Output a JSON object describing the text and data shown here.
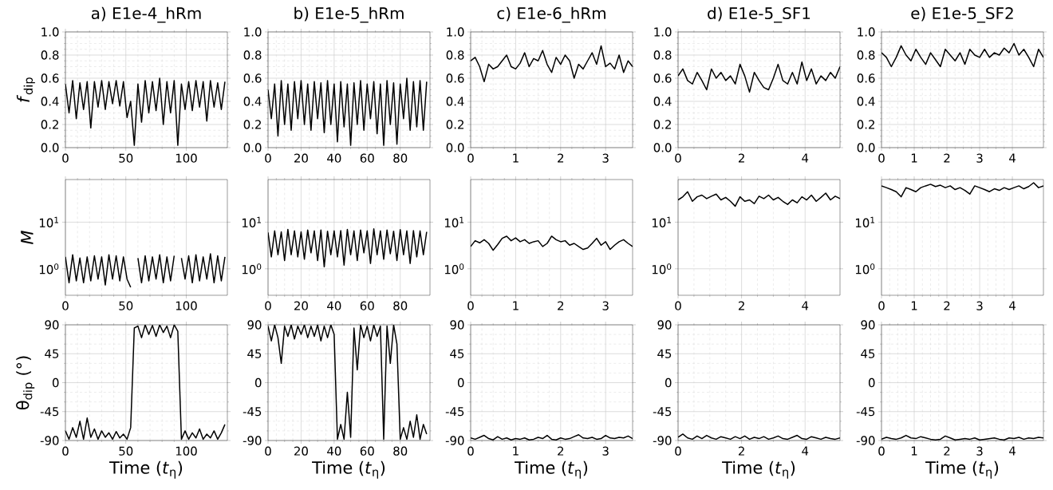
{
  "chart_data": [
    {
      "type": "line",
      "title": "a) E1e-4_hRm",
      "ylabel": "*f*$_{dip}$",
      "color": "#000000",
      "grid": true,
      "xlim": [
        0,
        134
      ],
      "xticks": [
        0,
        50,
        100
      ],
      "ylim": [
        0,
        1
      ],
      "yticks": [
        {
          "value": 0,
          "label": "0.0"
        },
        0.2,
        0.4,
        0.6,
        0.8,
        {
          "value": 1,
          "label": "1.0"
        }
      ],
      "x": [
        0,
        3,
        6,
        9,
        12,
        15,
        18,
        21,
        24,
        27,
        30,
        33,
        36,
        39,
        42,
        45,
        48,
        51,
        54,
        57,
        60,
        63,
        66,
        69,
        72,
        75,
        78,
        81,
        84,
        87,
        90,
        93,
        96,
        99,
        102,
        105,
        108,
        111,
        114,
        117,
        120,
        123,
        126,
        129,
        132
      ],
      "values": [
        0.55,
        0.3,
        0.58,
        0.25,
        0.56,
        0.33,
        0.57,
        0.17,
        0.57,
        0.35,
        0.58,
        0.33,
        0.57,
        0.38,
        0.58,
        0.36,
        0.57,
        0.26,
        0.4,
        0.02,
        0.55,
        0.22,
        0.58,
        0.3,
        0.57,
        0.32,
        0.6,
        0.2,
        0.57,
        0.3,
        0.58,
        0.02,
        0.55,
        0.33,
        0.57,
        0.32,
        0.58,
        0.35,
        0.57,
        0.23,
        0.58,
        0.35,
        0.56,
        0.33,
        0.57
      ]
    },
    {
      "type": "line",
      "title": "b) E1e-5_hRm",
      "color": "#000000",
      "grid": true,
      "xlim": [
        0,
        98
      ],
      "xticks": [
        0,
        20,
        40,
        60,
        80
      ],
      "ylim": [
        0,
        1
      ],
      "yticks": [
        {
          "value": 0,
          "label": "0.0"
        },
        0.2,
        0.4,
        0.6,
        0.8,
        {
          "value": 1,
          "label": "1.0"
        }
      ],
      "x": [
        0,
        2,
        4,
        6,
        8,
        10,
        12,
        14,
        16,
        18,
        20,
        22,
        24,
        26,
        28,
        30,
        32,
        34,
        36,
        38,
        40,
        42,
        44,
        46,
        48,
        50,
        52,
        54,
        56,
        58,
        60,
        62,
        64,
        66,
        68,
        70,
        72,
        74,
        76,
        78,
        80,
        82,
        84,
        86,
        88,
        90,
        92,
        94,
        96
      ],
      "values": [
        0.5,
        0.25,
        0.55,
        0.1,
        0.58,
        0.2,
        0.55,
        0.15,
        0.57,
        0.25,
        0.58,
        0.2,
        0.55,
        0.15,
        0.57,
        0.25,
        0.56,
        0.13,
        0.58,
        0.2,
        0.55,
        0.05,
        0.57,
        0.18,
        0.55,
        0.02,
        0.56,
        0.2,
        0.58,
        0.15,
        0.55,
        0.25,
        0.57,
        0.12,
        0.55,
        0.02,
        0.58,
        0.2,
        0.56,
        0.03,
        0.55,
        0.25,
        0.6,
        0.15,
        0.57,
        0.18,
        0.58,
        0.15,
        0.57
      ]
    },
    {
      "type": "line",
      "title": "c) E1e-6_hRm",
      "color": "#000000",
      "grid": true,
      "xlim": [
        0,
        3.6
      ],
      "xticks": [
        0,
        1,
        2,
        3
      ],
      "ylim": [
        0,
        1
      ],
      "yticks": [
        {
          "value": 0,
          "label": "0.0"
        },
        0.2,
        0.4,
        0.6,
        0.8,
        {
          "value": 1,
          "label": "1.0"
        }
      ],
      "x": [
        0,
        0.1,
        0.2,
        0.3,
        0.4,
        0.5,
        0.6,
        0.7,
        0.8,
        0.9,
        1.0,
        1.1,
        1.2,
        1.3,
        1.4,
        1.5,
        1.6,
        1.7,
        1.8,
        1.9,
        2.0,
        2.1,
        2.2,
        2.3,
        2.4,
        2.5,
        2.6,
        2.7,
        2.8,
        2.9,
        3.0,
        3.1,
        3.2,
        3.3,
        3.4,
        3.5,
        3.6
      ],
      "values": [
        0.75,
        0.78,
        0.7,
        0.57,
        0.72,
        0.68,
        0.7,
        0.75,
        0.8,
        0.7,
        0.68,
        0.73,
        0.82,
        0.7,
        0.77,
        0.75,
        0.84,
        0.72,
        0.65,
        0.78,
        0.72,
        0.8,
        0.75,
        0.6,
        0.72,
        0.68,
        0.75,
        0.82,
        0.72,
        0.88,
        0.7,
        0.73,
        0.68,
        0.8,
        0.65,
        0.75,
        0.7
      ]
    },
    {
      "type": "line",
      "title": "d) E1e-5_SF1",
      "color": "#000000",
      "grid": true,
      "xlim": [
        0,
        5.1
      ],
      "xticks": [
        0,
        2,
        4
      ],
      "ylim": [
        0,
        1
      ],
      "yticks": [
        {
          "value": 0,
          "label": "0.0"
        },
        0.2,
        0.4,
        0.6,
        0.8,
        {
          "value": 1,
          "label": "1.0"
        }
      ],
      "x": [
        0,
        0.15,
        0.3,
        0.45,
        0.6,
        0.75,
        0.9,
        1.05,
        1.2,
        1.35,
        1.5,
        1.65,
        1.8,
        1.95,
        2.1,
        2.25,
        2.4,
        2.55,
        2.7,
        2.85,
        3.0,
        3.15,
        3.3,
        3.45,
        3.6,
        3.75,
        3.9,
        4.05,
        4.2,
        4.35,
        4.5,
        4.65,
        4.8,
        4.95,
        5.1
      ],
      "values": [
        0.62,
        0.68,
        0.58,
        0.55,
        0.65,
        0.58,
        0.5,
        0.68,
        0.6,
        0.65,
        0.58,
        0.62,
        0.55,
        0.72,
        0.62,
        0.48,
        0.65,
        0.58,
        0.52,
        0.5,
        0.6,
        0.72,
        0.58,
        0.55,
        0.65,
        0.55,
        0.74,
        0.58,
        0.68,
        0.55,
        0.62,
        0.58,
        0.65,
        0.6,
        0.7
      ]
    },
    {
      "type": "line",
      "title": "e) E1e-5_SF2",
      "color": "#000000",
      "grid": true,
      "xlim": [
        0,
        4.95
      ],
      "xticks": [
        0,
        1,
        2,
        3,
        4
      ],
      "ylim": [
        0,
        1
      ],
      "yticks": [
        {
          "value": 0,
          "label": "0.0"
        },
        0.2,
        0.4,
        0.6,
        0.8,
        {
          "value": 1,
          "label": "1.0"
        }
      ],
      "x": [
        0,
        0.15,
        0.3,
        0.45,
        0.6,
        0.75,
        0.9,
        1.05,
        1.2,
        1.35,
        1.5,
        1.65,
        1.8,
        1.95,
        2.1,
        2.25,
        2.4,
        2.55,
        2.7,
        2.85,
        3.0,
        3.15,
        3.3,
        3.45,
        3.6,
        3.75,
        3.9,
        4.05,
        4.2,
        4.35,
        4.5,
        4.65,
        4.8,
        4.95
      ],
      "values": [
        0.82,
        0.78,
        0.7,
        0.78,
        0.88,
        0.8,
        0.75,
        0.85,
        0.78,
        0.72,
        0.82,
        0.76,
        0.7,
        0.85,
        0.8,
        0.75,
        0.82,
        0.72,
        0.85,
        0.8,
        0.78,
        0.85,
        0.78,
        0.82,
        0.8,
        0.86,
        0.82,
        0.9,
        0.8,
        0.85,
        0.78,
        0.7,
        0.85,
        0.78
      ]
    },
    {
      "type": "line",
      "ylabel": "*M*",
      "color": "#000000",
      "grid": true,
      "log": true,
      "xlim": [
        0,
        134
      ],
      "xticks": [
        0,
        50,
        100
      ],
      "ylim": [
        0.27,
        82
      ],
      "yticks": [
        {
          "value": 1,
          "label": "10$^{0}$"
        },
        {
          "value": 10,
          "label": "10$^{1}$"
        }
      ],
      "x": [
        0,
        3,
        6,
        9,
        12,
        15,
        18,
        21,
        24,
        27,
        30,
        33,
        36,
        39,
        42,
        45,
        48,
        51,
        54,
        57,
        60,
        63,
        66,
        69,
        72,
        75,
        78,
        81,
        84,
        87,
        90,
        93,
        96,
        99,
        102,
        105,
        108,
        111,
        114,
        117,
        120,
        123,
        126,
        129,
        132
      ],
      "values": [
        1.8,
        0.5,
        2.0,
        0.55,
        1.7,
        0.5,
        1.8,
        0.55,
        1.9,
        0.6,
        1.8,
        0.45,
        2.0,
        0.6,
        1.9,
        0.55,
        1.8,
        0.6,
        0.4,
        null,
        1.7,
        0.5,
        1.9,
        0.55,
        1.8,
        0.6,
        2.0,
        0.5,
        1.8,
        0.55,
        1.9,
        null,
        1.7,
        0.6,
        1.9,
        0.5,
        2.0,
        0.55,
        1.8,
        0.6,
        2.1,
        0.5,
        1.9,
        0.55,
        1.8
      ]
    },
    {
      "type": "line",
      "color": "#000000",
      "grid": true,
      "log": true,
      "xlim": [
        0,
        98
      ],
      "xticks": [
        0,
        20,
        40,
        60,
        80
      ],
      "ylim": [
        0.27,
        82
      ],
      "yticks": [
        {
          "value": 1,
          "label": "10$^{0}$"
        },
        {
          "value": 10,
          "label": "10$^{1}$"
        }
      ],
      "x": [
        0,
        2,
        4,
        6,
        8,
        10,
        12,
        14,
        16,
        18,
        20,
        22,
        24,
        26,
        28,
        30,
        32,
        34,
        36,
        38,
        40,
        42,
        44,
        46,
        48,
        50,
        52,
        54,
        56,
        58,
        60,
        62,
        64,
        66,
        68,
        70,
        72,
        74,
        76,
        78,
        80,
        82,
        84,
        86,
        88,
        90,
        92,
        94,
        96
      ],
      "values": [
        6,
        1.8,
        6.5,
        2,
        6.2,
        1.5,
        7,
        2,
        6.5,
        1.8,
        6.2,
        1.6,
        6.8,
        2.2,
        6.5,
        1.5,
        6.8,
        1.1,
        6.4,
        2,
        6.5,
        1.8,
        6.6,
        1.2,
        7,
        2,
        6.5,
        1.5,
        6.8,
        2.2,
        6.5,
        1.3,
        7.2,
        2,
        6.5,
        1.6,
        6.8,
        2.1,
        6.4,
        1.5,
        6.9,
        2,
        6.5,
        1.3,
        6.6,
        1.8,
        6.5,
        2,
        6.2
      ]
    },
    {
      "type": "line",
      "color": "#000000",
      "grid": true,
      "log": true,
      "xlim": [
        0,
        3.6
      ],
      "xticks": [
        0,
        1,
        2,
        3
      ],
      "ylim": [
        0.27,
        82
      ],
      "yticks": [
        {
          "value": 1,
          "label": "10$^{0}$"
        },
        {
          "value": 10,
          "label": "10$^{1}$"
        }
      ],
      "x": [
        0,
        0.1,
        0.2,
        0.3,
        0.4,
        0.5,
        0.6,
        0.7,
        0.8,
        0.9,
        1.0,
        1.1,
        1.2,
        1.3,
        1.4,
        1.5,
        1.6,
        1.7,
        1.8,
        1.9,
        2.0,
        2.1,
        2.2,
        2.3,
        2.4,
        2.5,
        2.6,
        2.7,
        2.8,
        2.9,
        3.0,
        3.1,
        3.2,
        3.3,
        3.4,
        3.5,
        3.6
      ],
      "values": [
        3,
        4,
        3.6,
        4.2,
        3.5,
        2.5,
        3.3,
        4.5,
        5,
        4,
        4.6,
        3.8,
        4.2,
        3.5,
        3.8,
        4,
        3,
        3.5,
        5,
        4.2,
        3.8,
        4,
        3.2,
        3.5,
        3,
        2.6,
        2.8,
        3.5,
        4.5,
        3.2,
        3.8,
        2.6,
        3.2,
        3.8,
        4.2,
        3.5,
        3
      ]
    },
    {
      "type": "line",
      "color": "#000000",
      "grid": true,
      "log": true,
      "xlim": [
        0,
        5.1
      ],
      "xticks": [
        0,
        2,
        4
      ],
      "ylim": [
        0.27,
        82
      ],
      "yticks": [
        {
          "value": 1,
          "label": "10$^{0}$"
        },
        {
          "value": 10,
          "label": "10$^{1}$"
        }
      ],
      "x": [
        0,
        0.15,
        0.3,
        0.45,
        0.6,
        0.75,
        0.9,
        1.05,
        1.2,
        1.35,
        1.5,
        1.65,
        1.8,
        1.95,
        2.1,
        2.25,
        2.4,
        2.55,
        2.7,
        2.85,
        3.0,
        3.15,
        3.3,
        3.45,
        3.6,
        3.75,
        3.9,
        4.05,
        4.2,
        4.35,
        4.5,
        4.65,
        4.8,
        4.95,
        5.1
      ],
      "values": [
        30,
        35,
        45,
        28,
        35,
        38,
        32,
        36,
        40,
        30,
        34,
        28,
        22,
        35,
        28,
        30,
        25,
        36,
        32,
        38,
        30,
        34,
        28,
        24,
        30,
        26,
        35,
        30,
        38,
        28,
        34,
        42,
        30,
        36,
        32
      ]
    },
    {
      "type": "line",
      "color": "#000000",
      "grid": true,
      "log": true,
      "xlim": [
        0,
        4.95
      ],
      "xticks": [
        0,
        1,
        2,
        3,
        4
      ],
      "ylim": [
        0.27,
        82
      ],
      "yticks": [
        {
          "value": 1,
          "label": "10$^{0}$"
        },
        {
          "value": 10,
          "label": "10$^{1}$"
        }
      ],
      "x": [
        0,
        0.15,
        0.3,
        0.45,
        0.6,
        0.75,
        0.9,
        1.05,
        1.2,
        1.35,
        1.5,
        1.65,
        1.8,
        1.95,
        2.1,
        2.25,
        2.4,
        2.55,
        2.7,
        2.85,
        3.0,
        3.15,
        3.3,
        3.45,
        3.6,
        3.75,
        3.9,
        4.05,
        4.2,
        4.35,
        4.5,
        4.65,
        4.8,
        4.95
      ],
      "values": [
        60,
        55,
        50,
        45,
        35,
        55,
        50,
        45,
        55,
        60,
        65,
        58,
        62,
        55,
        60,
        50,
        55,
        48,
        40,
        60,
        55,
        50,
        45,
        52,
        48,
        55,
        50,
        55,
        60,
        52,
        58,
        70,
        55,
        60
      ]
    },
    {
      "type": "line",
      "ylabel": "θ$_{dip}$ (°)",
      "xlabel": "Time (*t*$_{η}$)",
      "color": "#000000",
      "grid": true,
      "xlim": [
        0,
        134
      ],
      "xticks": [
        0,
        50,
        100
      ],
      "ylim": [
        -90,
        90
      ],
      "yticks": [
        -90,
        -45,
        0,
        45,
        90
      ],
      "x": [
        0,
        3,
        6,
        9,
        12,
        15,
        18,
        21,
        24,
        27,
        30,
        33,
        36,
        39,
        42,
        45,
        48,
        51,
        54,
        57,
        60,
        63,
        66,
        69,
        72,
        75,
        78,
        81,
        84,
        87,
        90,
        93,
        96,
        99,
        102,
        105,
        108,
        111,
        114,
        117,
        120,
        123,
        126,
        129,
        132
      ],
      "values": [
        -75,
        -88,
        -70,
        -85,
        -60,
        -88,
        -55,
        -85,
        -72,
        -88,
        -75,
        -85,
        -78,
        -88,
        -76,
        -86,
        -80,
        -88,
        -70,
        85,
        88,
        70,
        90,
        75,
        89,
        72,
        90,
        78,
        88,
        70,
        90,
        80,
        -88,
        -75,
        -88,
        -78,
        -86,
        -72,
        -88,
        -80,
        -86,
        -75,
        -88,
        -78,
        -65
      ]
    },
    {
      "type": "line",
      "xlabel": "Time (*t*$_{η}$)",
      "color": "#000000",
      "grid": true,
      "xlim": [
        0,
        98
      ],
      "xticks": [
        0,
        20,
        40,
        60,
        80
      ],
      "ylim": [
        -90,
        90
      ],
      "yticks": [
        -90,
        -45,
        0,
        45,
        90
      ],
      "x": [
        0,
        2,
        4,
        6,
        8,
        10,
        12,
        14,
        16,
        18,
        20,
        22,
        24,
        26,
        28,
        30,
        32,
        34,
        36,
        38,
        40,
        42,
        44,
        46,
        48,
        50,
        52,
        54,
        56,
        58,
        60,
        62,
        64,
        66,
        68,
        70,
        72,
        74,
        76,
        78,
        80,
        82,
        84,
        86,
        88,
        90,
        92,
        94,
        96
      ],
      "values": [
        88,
        65,
        90,
        70,
        30,
        88,
        72,
        90,
        68,
        88,
        75,
        90,
        70,
        88,
        72,
        90,
        65,
        88,
        70,
        90,
        75,
        -88,
        -65,
        -88,
        -15,
        -85,
        85,
        20,
        90,
        70,
        88,
        65,
        90,
        72,
        88,
        -88,
        88,
        30,
        90,
        60,
        -88,
        -70,
        -88,
        -60,
        -85,
        -50,
        -88,
        -65,
        -80
      ]
    },
    {
      "type": "line",
      "xlabel": "Time (*t*$_{η}$)",
      "color": "#000000",
      "grid": true,
      "xlim": [
        0,
        3.6
      ],
      "xticks": [
        0,
        1,
        2,
        3
      ],
      "ylim": [
        -90,
        90
      ],
      "yticks": [
        -90,
        -45,
        0,
        45,
        90
      ],
      "x": [
        0,
        0.1,
        0.2,
        0.3,
        0.4,
        0.5,
        0.6,
        0.7,
        0.8,
        0.9,
        1.0,
        1.1,
        1.2,
        1.3,
        1.4,
        1.5,
        1.6,
        1.7,
        1.8,
        1.9,
        2.0,
        2.1,
        2.2,
        2.3,
        2.4,
        2.5,
        2.6,
        2.7,
        2.8,
        2.9,
        3.0,
        3.1,
        3.2,
        3.3,
        3.4,
        3.5,
        3.6
      ],
      "values": [
        -86,
        -88,
        -85,
        -82,
        -87,
        -89,
        -84,
        -88,
        -86,
        -89,
        -87,
        -88,
        -86,
        -89,
        -88,
        -85,
        -87,
        -82,
        -88,
        -89,
        -86,
        -88,
        -87,
        -84,
        -81,
        -86,
        -87,
        -85,
        -88,
        -87,
        -82,
        -86,
        -87,
        -85,
        -86,
        -83,
        -87
      ]
    },
    {
      "type": "line",
      "xlabel": "Time (*t*$_{η}$)",
      "color": "#000000",
      "grid": true,
      "xlim": [
        0,
        5.1
      ],
      "xticks": [
        0,
        2,
        4
      ],
      "ylim": [
        -90,
        90
      ],
      "yticks": [
        -90,
        -45,
        0,
        45,
        90
      ],
      "x": [
        0,
        0.15,
        0.3,
        0.45,
        0.6,
        0.75,
        0.9,
        1.05,
        1.2,
        1.35,
        1.5,
        1.65,
        1.8,
        1.95,
        2.1,
        2.25,
        2.4,
        2.55,
        2.7,
        2.85,
        3.0,
        3.15,
        3.3,
        3.45,
        3.6,
        3.75,
        3.9,
        4.05,
        4.2,
        4.35,
        4.5,
        4.65,
        4.8,
        4.95,
        5.1
      ],
      "values": [
        -85,
        -80,
        -86,
        -88,
        -83,
        -87,
        -82,
        -86,
        -88,
        -84,
        -86,
        -88,
        -84,
        -87,
        -83,
        -88,
        -85,
        -87,
        -84,
        -88,
        -86,
        -83,
        -87,
        -88,
        -85,
        -82,
        -87,
        -88,
        -84,
        -86,
        -88,
        -85,
        -87,
        -88,
        -86
      ]
    },
    {
      "type": "line",
      "xlabel": "Time (*t*$_{η}$)",
      "color": "#000000",
      "grid": true,
      "xlim": [
        0,
        4.95
      ],
      "xticks": [
        0,
        1,
        2,
        3,
        4
      ],
      "ylim": [
        -90,
        90
      ],
      "yticks": [
        -90,
        -45,
        0,
        45,
        90
      ],
      "x": [
        0,
        0.15,
        0.3,
        0.45,
        0.6,
        0.75,
        0.9,
        1.05,
        1.2,
        1.35,
        1.5,
        1.65,
        1.8,
        1.95,
        2.1,
        2.25,
        2.4,
        2.55,
        2.7,
        2.85,
        3.0,
        3.15,
        3.3,
        3.45,
        3.6,
        3.75,
        3.9,
        4.05,
        4.2,
        4.35,
        4.5,
        4.65,
        4.8,
        4.95
      ],
      "values": [
        -88,
        -85,
        -87,
        -88,
        -86,
        -82,
        -86,
        -87,
        -84,
        -86,
        -88,
        -89,
        -88,
        -83,
        -86,
        -89,
        -88,
        -87,
        -88,
        -86,
        -89,
        -88,
        -87,
        -86,
        -88,
        -89,
        -86,
        -87,
        -85,
        -88,
        -86,
        -87,
        -85,
        -86
      ]
    }
  ]
}
